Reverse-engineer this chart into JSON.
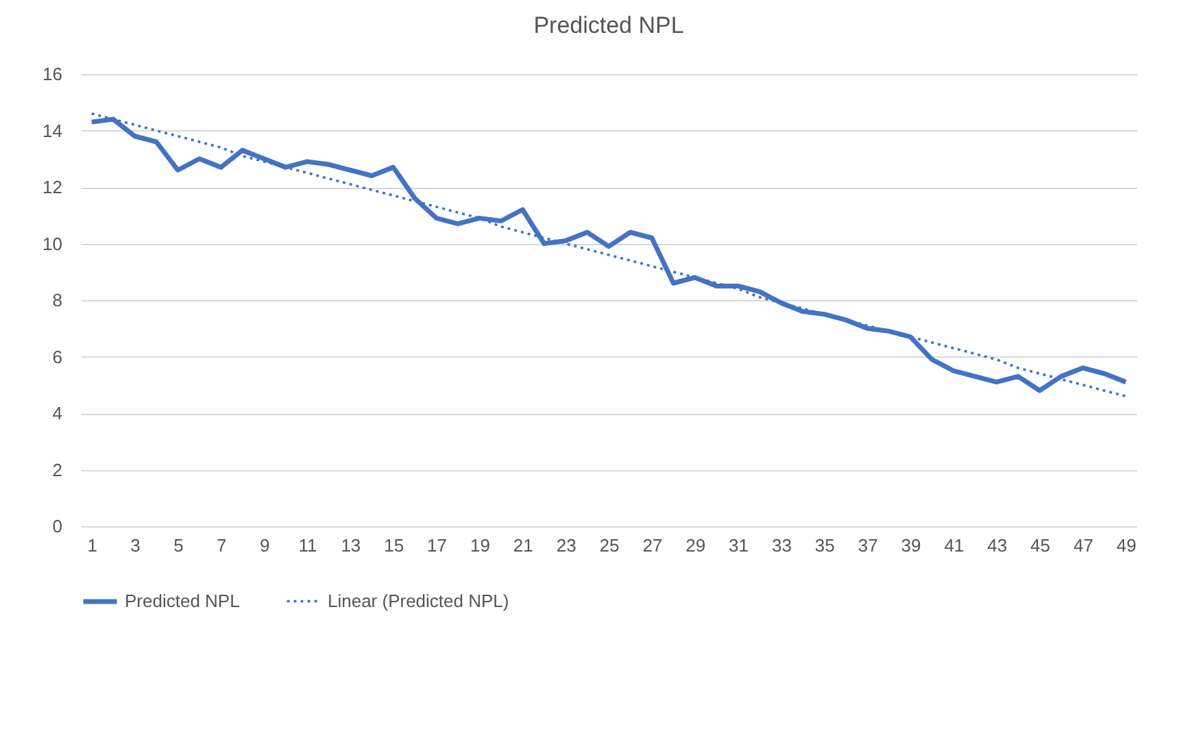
{
  "chart_data": {
    "type": "line",
    "title": "Predicted NPL",
    "x": [
      1,
      2,
      3,
      4,
      5,
      6,
      7,
      8,
      9,
      10,
      11,
      12,
      13,
      14,
      15,
      16,
      17,
      18,
      19,
      20,
      21,
      22,
      23,
      24,
      25,
      26,
      27,
      28,
      29,
      30,
      31,
      32,
      33,
      34,
      35,
      36,
      37,
      38,
      39,
      40,
      41,
      42,
      43,
      44,
      45,
      46,
      47,
      48,
      49
    ],
    "series": [
      {
        "name": "Predicted NPL",
        "color": "#4472c4",
        "line_style": "solid",
        "values": [
          14.3,
          14.4,
          13.8,
          13.6,
          12.6,
          13.0,
          12.7,
          13.3,
          13.0,
          12.7,
          12.9,
          12.8,
          12.6,
          12.4,
          12.7,
          11.6,
          10.9,
          10.7,
          10.9,
          10.8,
          11.2,
          10.0,
          10.1,
          10.4,
          9.9,
          10.4,
          10.2,
          8.6,
          8.8,
          8.5,
          8.5,
          8.3,
          7.9,
          7.6,
          7.5,
          7.3,
          7.0,
          6.9,
          6.7,
          5.9,
          5.5,
          5.3,
          5.1,
          5.3,
          4.8,
          5.3,
          5.6,
          5.4,
          5.1
        ]
      },
      {
        "name": "Linear (Predicted NPL)",
        "color": "#4472c4",
        "line_style": "dotted",
        "values": [
          14.6,
          14.4,
          14.2,
          14.0,
          13.8,
          13.6,
          13.4,
          13.1,
          12.9,
          12.7,
          12.5,
          12.3,
          12.1,
          11.9,
          11.7,
          11.5,
          11.3,
          11.1,
          10.9,
          10.6,
          10.4,
          10.2,
          10.0,
          9.8,
          9.6,
          9.4,
          9.2,
          9.0,
          8.8,
          8.6,
          8.4,
          8.1,
          7.9,
          7.7,
          7.5,
          7.3,
          7.1,
          6.9,
          6.7,
          6.5,
          6.3,
          6.1,
          5.9,
          5.6,
          5.4,
          5.2,
          5.0,
          4.8,
          4.6
        ]
      }
    ],
    "xlim": [
      0.5,
      49.5
    ],
    "xticks": [
      1,
      3,
      5,
      7,
      9,
      11,
      13,
      15,
      17,
      19,
      21,
      23,
      25,
      27,
      29,
      31,
      33,
      35,
      37,
      39,
      41,
      43,
      45,
      47,
      49
    ],
    "ylim": [
      0,
      16
    ],
    "yticks": [
      0,
      2,
      4,
      6,
      8,
      10,
      12,
      14,
      16
    ],
    "grid": "y",
    "legend": "bottom"
  }
}
